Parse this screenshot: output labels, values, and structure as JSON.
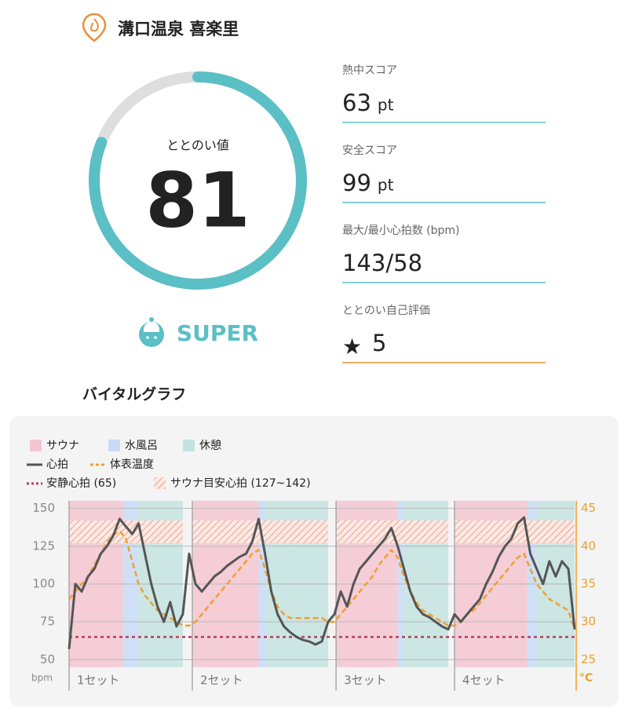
{
  "header": {
    "title": "溝口温泉 喜楽里"
  },
  "gauge": {
    "label": "ととのい値",
    "value": 81,
    "range": [
      0,
      100
    ],
    "rank": "SUPER"
  },
  "scores": [
    {
      "label": "熱中スコア",
      "value": 63,
      "unit": "pt"
    },
    {
      "label": "安全スコア",
      "value": 99,
      "unit": "pt"
    },
    {
      "label": "最大/最小心拍数 (bpm)",
      "value": "143/58"
    },
    {
      "label": "ととのい自己評価",
      "value": 5,
      "icon": "★"
    }
  ],
  "chart_data": {
    "type": "line",
    "title": "バイタルグラフ",
    "zones": {
      "sauna": {
        "name": "サウナ",
        "color": "#f4c6d1"
      },
      "cold": {
        "name": "水風呂",
        "color": "#c8dbf6"
      },
      "rest": {
        "name": "休憩",
        "color": "#c3e3df"
      }
    },
    "sets": [
      {
        "label": "1セット",
        "sauna": [
          0,
          17
        ],
        "cold": [
          17,
          22
        ],
        "rest": [
          22,
          36
        ]
      },
      {
        "label": "2セット",
        "sauna": [
          39,
          60
        ],
        "cold": [
          60,
          62.5
        ],
        "rest": [
          62.5,
          82
        ]
      },
      {
        "label": "3セット",
        "sauna": [
          84.5,
          104
        ],
        "cold": [
          104,
          106
        ],
        "rest": [
          106,
          120
        ]
      },
      {
        "label": "4セット",
        "sauna": [
          122,
          145
        ],
        "cold": [
          145,
          148
        ],
        "rest": [
          148,
          160
        ]
      }
    ],
    "x": [
      0,
      2,
      4,
      6,
      8,
      10,
      12,
      14,
      16,
      18,
      20,
      22,
      24,
      26,
      28,
      30,
      32,
      34,
      36,
      38,
      40,
      42,
      44,
      46,
      48,
      50,
      52,
      54,
      56,
      58,
      60,
      62,
      64,
      66,
      68,
      70,
      72,
      74,
      76,
      78,
      80,
      82,
      84,
      86,
      88,
      90,
      92,
      94,
      96,
      98,
      100,
      102,
      104,
      106,
      108,
      110,
      112,
      114,
      116,
      118,
      120,
      122,
      124,
      126,
      128,
      130,
      132,
      134,
      136,
      138,
      140,
      142,
      144,
      146,
      148,
      150,
      152,
      154,
      156,
      158,
      160
    ],
    "series": [
      {
        "name": "心拍",
        "color": "#555555",
        "values": [
          57,
          100,
          95,
          105,
          110,
          120,
          125,
          132,
          143,
          138,
          133,
          140,
          120,
          100,
          85,
          75,
          88,
          72,
          80,
          120,
          100,
          95,
          100,
          105,
          108,
          112,
          115,
          118,
          120,
          128,
          143,
          120,
          95,
          80,
          72,
          68,
          65,
          63,
          62,
          60,
          62,
          75,
          80,
          95,
          85,
          100,
          110,
          115,
          120,
          125,
          130,
          137,
          125,
          110,
          95,
          85,
          80,
          78,
          75,
          72,
          70,
          80,
          75,
          80,
          85,
          90,
          100,
          108,
          118,
          125,
          130,
          140,
          144,
          120,
          110,
          100,
          115,
          105,
          115,
          110,
          70
        ]
      },
      {
        "name": "体表温度",
        "color": "#f0a030",
        "axis": "y2",
        "values": [
          33,
          34,
          35,
          36,
          37.5,
          39,
          40.5,
          41.5,
          42,
          41,
          38,
          35,
          33.5,
          32.5,
          31.5,
          31,
          30.5,
          30,
          29.5,
          29.5,
          30,
          31,
          32,
          33,
          34,
          35,
          36,
          37,
          38,
          39,
          39.5,
          37,
          34,
          32,
          31,
          30.5,
          30.5,
          30.5,
          30.5,
          30.5,
          30.5,
          30,
          30,
          31,
          32,
          33,
          34,
          35,
          36,
          37.5,
          38.5,
          39.5,
          38.5,
          36,
          34,
          32.5,
          31.5,
          31,
          30.5,
          30,
          29.5,
          29.5,
          30,
          31,
          31.5,
          32.5,
          33.5,
          34.5,
          35.5,
          36.5,
          37.5,
          38.5,
          39,
          37,
          35,
          34,
          33,
          32.5,
          32,
          31.5,
          29
        ]
      }
    ],
    "resting": {
      "label": "安静心拍 (65)",
      "value": 65,
      "color": "#b0405a"
    },
    "target": {
      "label": "サウナ目安心拍 (127~142)",
      "range": [
        127,
        142
      ],
      "color": "#eea08c"
    },
    "xlim": [
      0,
      160
    ],
    "ylim": [
      45,
      155
    ],
    "yticks": [
      50,
      75,
      100,
      125,
      150
    ],
    "y2lim": [
      24,
      46
    ],
    "y2ticks": [
      25,
      30,
      35,
      40,
      45
    ],
    "ylabel": "bpm",
    "y2label": "°C",
    "grid": true
  }
}
